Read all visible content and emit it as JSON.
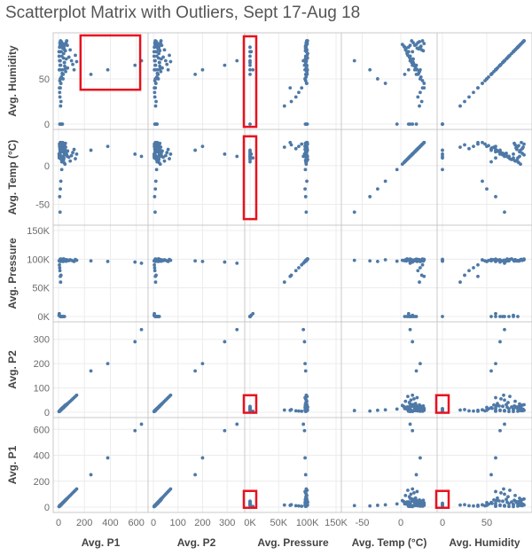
{
  "title": "Scatterplot Matrix with Outliers, Sept 17-Aug 18",
  "colors": {
    "point": "#4e79a7",
    "highlight": "#e8101e",
    "grid": "#ececec",
    "border": "#c8c8c8"
  },
  "chart_data": {
    "type": "scatter",
    "title": "Scatterplot Matrix with Outliers, Sept 17-Aug 18",
    "variables": [
      {
        "name": "Avg. P1",
        "min": 0,
        "max": 650,
        "ticks": [
          0,
          200,
          400,
          600
        ],
        "tick_labels": [
          "0",
          "200",
          "400",
          "600"
        ]
      },
      {
        "name": "Avg. P2",
        "min": 0,
        "max": 350,
        "ticks": [
          0,
          100,
          200,
          300
        ],
        "tick_labels": [
          "0",
          "100",
          "200",
          "300"
        ]
      },
      {
        "name": "Avg. Pressure",
        "min": 0,
        "max": 150000,
        "ticks": [
          0,
          50000,
          100000,
          150000
        ],
        "tick_labels": [
          "0K",
          "50K",
          "100K",
          "150K"
        ]
      },
      {
        "name": "Avg. Temp (°C)",
        "min": -70,
        "max": 40,
        "ticks": [
          -50,
          0
        ],
        "tick_labels": [
          "-50",
          "0"
        ]
      },
      {
        "name": "Avg. Humidity",
        "min": 0,
        "max": 95,
        "ticks": [
          0,
          50
        ],
        "tick_labels": [
          "0",
          "50"
        ]
      }
    ],
    "column_order": [
      "Avg. P1",
      "Avg. P2",
      "Avg. Pressure",
      "Avg. Temp (°C)",
      "Avg. Humidity"
    ],
    "row_order": [
      "Avg. Humidity",
      "Avg. Temp (°C)",
      "Avg. Pressure",
      "Avg. P2",
      "Avg. P1"
    ],
    "records": [
      [
        5,
        3,
        97000,
        12,
        75
      ],
      [
        8,
        5,
        98000,
        15,
        70
      ],
      [
        12,
        7,
        99000,
        18,
        65
      ],
      [
        15,
        9,
        100000,
        20,
        60
      ],
      [
        20,
        12,
        98500,
        10,
        80
      ],
      [
        25,
        15,
        97500,
        5,
        85
      ],
      [
        30,
        18,
        99500,
        22,
        55
      ],
      [
        35,
        20,
        96000,
        25,
        50
      ],
      [
        40,
        22,
        100500,
        8,
        78
      ],
      [
        45,
        25,
        97000,
        14,
        68
      ],
      [
        50,
        28,
        98000,
        2,
        88
      ],
      [
        55,
        30,
        99000,
        24,
        58
      ],
      [
        60,
        32,
        96500,
        16,
        72
      ],
      [
        70,
        36,
        98500,
        19,
        62
      ],
      [
        80,
        40,
        97500,
        11,
        74
      ],
      [
        90,
        45,
        99000,
        6,
        82
      ],
      [
        100,
        50,
        98000,
        13,
        70
      ],
      [
        110,
        55,
        97000,
        17,
        66
      ],
      [
        120,
        60,
        96000,
        21,
        60
      ],
      [
        130,
        65,
        99500,
        9,
        76
      ],
      [
        140,
        70,
        98000,
        15,
        69
      ],
      [
        10,
        6,
        97000,
        28,
        48
      ],
      [
        18,
        10,
        98500,
        30,
        45
      ],
      [
        22,
        14,
        97800,
        26,
        52
      ],
      [
        28,
        16,
        99200,
        23,
        56
      ],
      [
        33,
        19,
        96800,
        7,
        84
      ],
      [
        38,
        21,
        100200,
        12,
        73
      ],
      [
        42,
        23,
        97600,
        4,
        86
      ],
      [
        48,
        26,
        98800,
        18,
        64
      ],
      [
        52,
        27,
        97300,
        20,
        61
      ],
      [
        6,
        4,
        5000,
        10,
        60
      ],
      [
        4,
        3,
        2000,
        15,
        80
      ],
      [
        7,
        4,
        90000,
        28,
        40
      ],
      [
        9,
        5,
        85000,
        25,
        35
      ],
      [
        11,
        6,
        80000,
        22,
        30
      ],
      [
        14,
        8,
        70000,
        30,
        40
      ],
      [
        16,
        9,
        60000,
        24,
        20
      ],
      [
        19,
        11,
        72000,
        27,
        25
      ],
      [
        13,
        7,
        0,
        14,
        70
      ],
      [
        17,
        9,
        0,
        20,
        65
      ],
      [
        21,
        12,
        0,
        8,
        80
      ],
      [
        26,
        14,
        0,
        12,
        75
      ],
      [
        31,
        17,
        0,
        18,
        60
      ],
      [
        36,
        19,
        0,
        5,
        55
      ],
      [
        41,
        22,
        0,
        10,
        85
      ],
      [
        46,
        24,
        0,
        16,
        68
      ],
      [
        9,
        5,
        97000,
        -40,
        60
      ],
      [
        12,
        7,
        98000,
        -60,
        70
      ],
      [
        14,
        8,
        96000,
        -30,
        50
      ],
      [
        18,
        10,
        99000,
        -20,
        45
      ],
      [
        10,
        6,
        97500,
        15,
        0
      ],
      [
        15,
        8,
        98500,
        10,
        0
      ],
      [
        20,
        10,
        0,
        12,
        0
      ],
      [
        25,
        13,
        96500,
        -5,
        0
      ],
      [
        30,
        15,
        99800,
        20,
        0
      ],
      [
        8,
        4,
        97200,
        25,
        85
      ],
      [
        11,
        6,
        98200,
        22,
        90
      ],
      [
        13,
        7,
        99200,
        20,
        88
      ],
      [
        16,
        8,
        100200,
        28,
        92
      ],
      [
        19,
        10,
        97700,
        18,
        87
      ],
      [
        22,
        12,
        98700,
        24,
        91
      ],
      [
        27,
        14,
        96700,
        26,
        86
      ],
      [
        32,
        16,
        99700,
        30,
        89
      ],
      [
        37,
        18,
        97100,
        21,
        84
      ],
      [
        43,
        21,
        98100,
        23,
        83
      ],
      [
        47,
        24,
        99100,
        27,
        82
      ],
      [
        53,
        26,
        96600,
        29,
        81
      ],
      [
        58,
        29,
        97900,
        16,
        90
      ],
      [
        63,
        31,
        98900,
        14,
        92
      ],
      [
        68,
        34,
        97400,
        12,
        87
      ],
      [
        250,
        170,
        97000,
        20,
        55
      ],
      [
        380,
        200,
        96000,
        25,
        60
      ],
      [
        590,
        290,
        95000,
        15,
        65
      ],
      [
        640,
        340,
        93000,
        12,
        70
      ]
    ],
    "highlight_boxes": [
      {
        "row": "Avg. Humidity",
        "col": "Avg. P1",
        "x_range": [
          170,
          630
        ],
        "y_range": [
          38,
          98
        ]
      },
      {
        "row": "Avg. Humidity",
        "col": "Avg. Pressure",
        "x_range": [
          -4000,
          4000
        ],
        "y_range": [
          -3,
          97
        ]
      },
      {
        "row": "Avg. Temp (°C)",
        "col": "Avg. Pressure",
        "x_range": [
          -4000,
          4000
        ],
        "y_range": [
          -69,
          38
        ]
      },
      {
        "row": "Avg. P2",
        "col": "Avg. Pressure",
        "x_range": [
          -4000,
          4000
        ],
        "y_range": [
          -2,
          70
        ]
      },
      {
        "row": "Avg. P2",
        "col": "Avg. Humidity",
        "x_range": [
          -3,
          3
        ],
        "y_range": [
          -2,
          70
        ]
      },
      {
        "row": "Avg. P1",
        "col": "Avg. Pressure",
        "x_range": [
          -4000,
          4000
        ],
        "y_range": [
          -5,
          125
        ]
      },
      {
        "row": "Avg. P1",
        "col": "Avg. Humidity",
        "x_range": [
          -3,
          3
        ],
        "y_range": [
          -5,
          125
        ]
      }
    ],
    "grid": true,
    "legend": "none"
  }
}
